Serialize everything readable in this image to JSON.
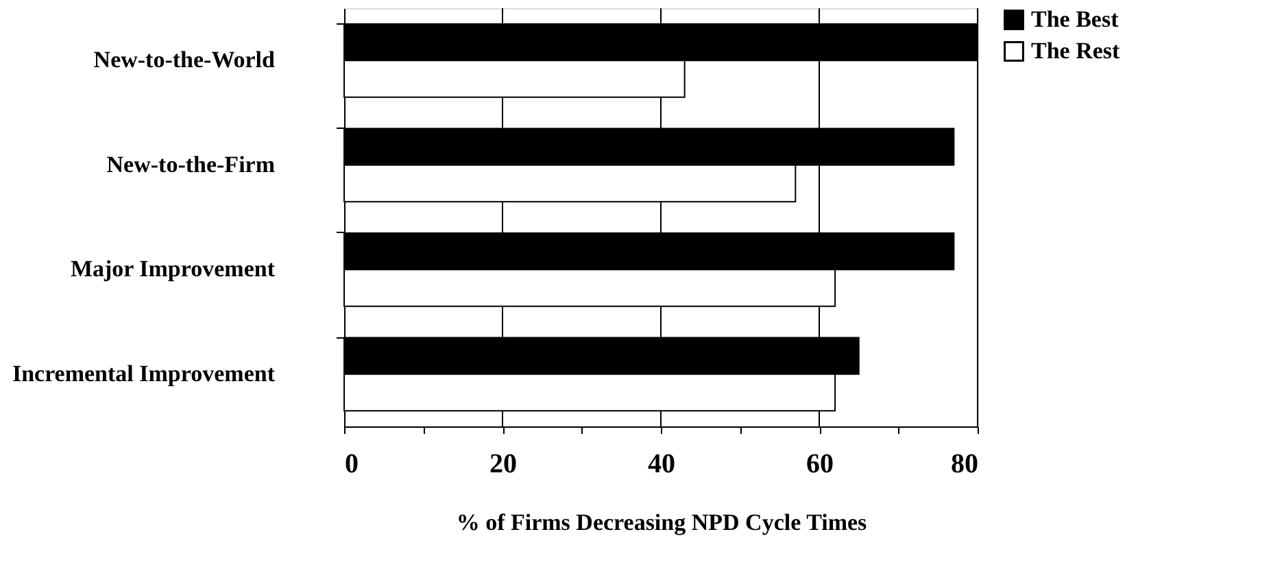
{
  "chart_data": {
    "type": "bar",
    "orientation": "horizontal",
    "categories": [
      "New-to-the-World",
      "New-to-the-Firm",
      "Major Improvement",
      "Incremental Improvement"
    ],
    "series": [
      {
        "name": "The Best",
        "color": "#000000",
        "values": [
          80,
          77,
          77,
          65
        ]
      },
      {
        "name": "The Rest",
        "color": "#ffffff",
        "values": [
          43,
          57,
          62,
          62
        ]
      }
    ],
    "xlabel": "% of Firms Decreasing NPD Cycle Times",
    "xlim": [
      0,
      80
    ],
    "xticks": [
      0,
      {
        "value": 10,
        "label": null
      },
      20,
      {
        "value": 30,
        "label": null
      },
      40,
      {
        "value": 50,
        "label": null
      },
      60,
      {
        "value": 70,
        "label": null
      },
      80
    ],
    "grid": "x",
    "legend": "right"
  }
}
